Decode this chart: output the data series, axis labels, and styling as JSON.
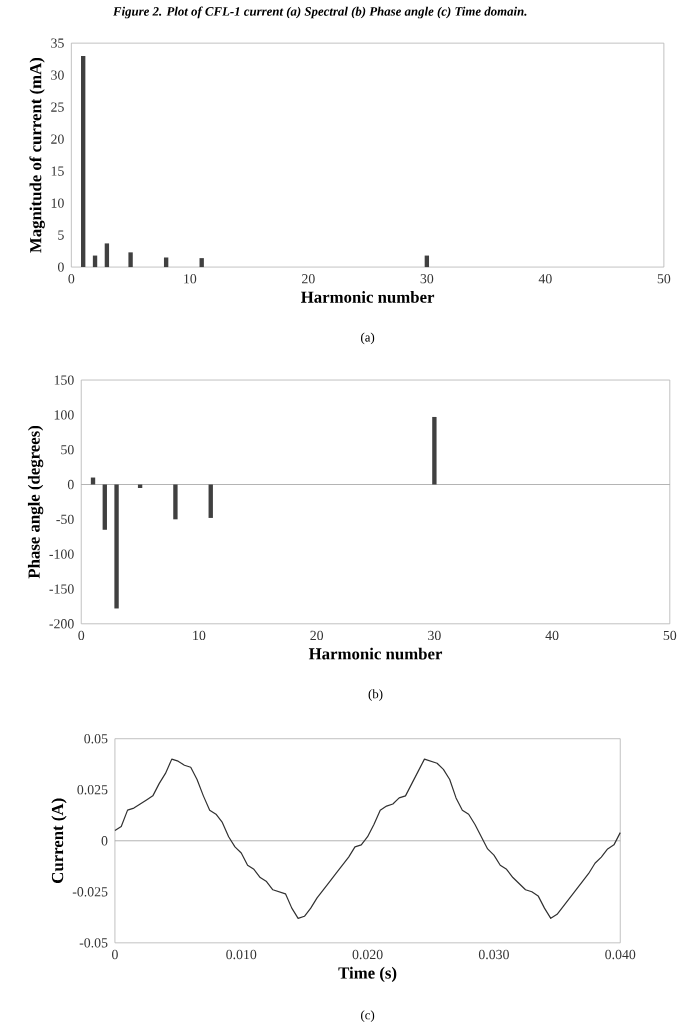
{
  "chart_data": [
    {
      "type": "bar",
      "title": "Figure 2. Plot of CFL-1 current (a) Spectral (b) Phase angle (c) Time domain.",
      "xlabel": "Harmonic number",
      "ylabel": "Magnitude of current (mA)",
      "x": [
        1,
        2,
        3,
        5,
        8,
        11,
        30
      ],
      "values": [
        33,
        1.8,
        3.7,
        2.3,
        1.5,
        1.4,
        1.8
      ],
      "color": "#404040",
      "xlim": [
        0,
        50
      ],
      "xticks": [
        0,
        10,
        20,
        30,
        40,
        50
      ],
      "ylim": [
        0,
        35
      ],
      "yticks": [
        0,
        5,
        10,
        15,
        20,
        25,
        30,
        35
      ],
      "annotations": [
        "(a)"
      ]
    },
    {
      "type": "bar",
      "xlabel": "Harmonic number",
      "ylabel": "Phase angle (degrees)",
      "x": [
        1,
        2,
        3,
        5,
        8,
        11,
        30
      ],
      "values": [
        10,
        -65,
        -178,
        -5,
        -50,
        -48,
        97
      ],
      "color": "#404040",
      "xlim": [
        0,
        50
      ],
      "xticks": [
        0,
        10,
        20,
        30,
        40,
        50
      ],
      "ylim": [
        -200,
        150
      ],
      "yticks": [
        -200,
        -150,
        -100,
        -50,
        0,
        50,
        100,
        150
      ],
      "ref_lines": [
        {
          "axis": "y",
          "value": 0,
          "color": "#a0a0a0"
        }
      ],
      "annotations": [
        "(b)"
      ]
    },
    {
      "type": "line",
      "xlabel": "Time (s)",
      "ylabel": "Current (A)",
      "color": "#303030",
      "marker": "none",
      "line_style": "solid",
      "x": [
        0,
        0.0005,
        0.001,
        0.0015,
        0.002,
        0.0025,
        0.003,
        0.0035,
        0.004,
        0.0045,
        0.005,
        0.0055,
        0.006,
        0.0065,
        0.007,
        0.0075,
        0.008,
        0.0085,
        0.009,
        0.0095,
        0.01,
        0.0105,
        0.011,
        0.0115,
        0.012,
        0.0125,
        0.013,
        0.0135,
        0.014,
        0.0145,
        0.015,
        0.0155,
        0.016,
        0.0165,
        0.017,
        0.0175,
        0.018,
        0.0185,
        0.019,
        0.0195,
        0.02,
        0.0205,
        0.021,
        0.0215,
        0.022,
        0.0225,
        0.023,
        0.0235,
        0.024,
        0.0245,
        0.025,
        0.0255,
        0.026,
        0.0265,
        0.027,
        0.0275,
        0.028,
        0.0285,
        0.029,
        0.0295,
        0.03,
        0.0305,
        0.031,
        0.0315,
        0.032,
        0.0325,
        0.033,
        0.0335,
        0.034,
        0.0345,
        0.035,
        0.0355,
        0.036,
        0.0365,
        0.037,
        0.0375,
        0.038,
        0.0385,
        0.039,
        0.0395,
        0.04
      ],
      "values": [
        0.005,
        0.007,
        0.015,
        0.016,
        0.018,
        0.02,
        0.022,
        0.028,
        0.033,
        0.04,
        0.039,
        0.037,
        0.036,
        0.03,
        0.022,
        0.015,
        0.013,
        0.009,
        0.002,
        -0.003,
        -0.006,
        -0.012,
        -0.014,
        -0.018,
        -0.02,
        -0.024,
        -0.025,
        -0.026,
        -0.033,
        -0.038,
        -0.037,
        -0.033,
        -0.028,
        -0.024,
        -0.02,
        -0.016,
        -0.012,
        -0.008,
        -0.003,
        -0.002,
        0.002,
        0.008,
        0.015,
        0.017,
        0.018,
        0.021,
        0.022,
        0.028,
        0.034,
        0.04,
        0.039,
        0.038,
        0.035,
        0.03,
        0.021,
        0.015,
        0.013,
        0.008,
        0.002,
        -0.004,
        -0.007,
        -0.012,
        -0.014,
        -0.018,
        -0.021,
        -0.024,
        -0.025,
        -0.027,
        -0.033,
        -0.038,
        -0.036,
        -0.032,
        -0.028,
        -0.024,
        -0.02,
        -0.016,
        -0.011,
        -0.008,
        -0.004,
        -0.002,
        0.004
      ],
      "xlim": [
        0,
        0.04
      ],
      "xticks": [
        0,
        {
          "value": 0.01,
          "label": "0.010"
        },
        {
          "value": 0.02,
          "label": "0.020"
        },
        {
          "value": 0.03,
          "label": "0.030"
        },
        {
          "value": 0.04,
          "label": "0.040"
        }
      ],
      "ylim": [
        -0.05,
        0.05
      ],
      "yticks": [
        -0.05,
        -0.025,
        0,
        0.025,
        0.05
      ],
      "ref_lines": [
        {
          "axis": "y",
          "value": 0,
          "color": "#a0a0a0"
        }
      ],
      "annotations": [
        "(c)"
      ]
    }
  ]
}
